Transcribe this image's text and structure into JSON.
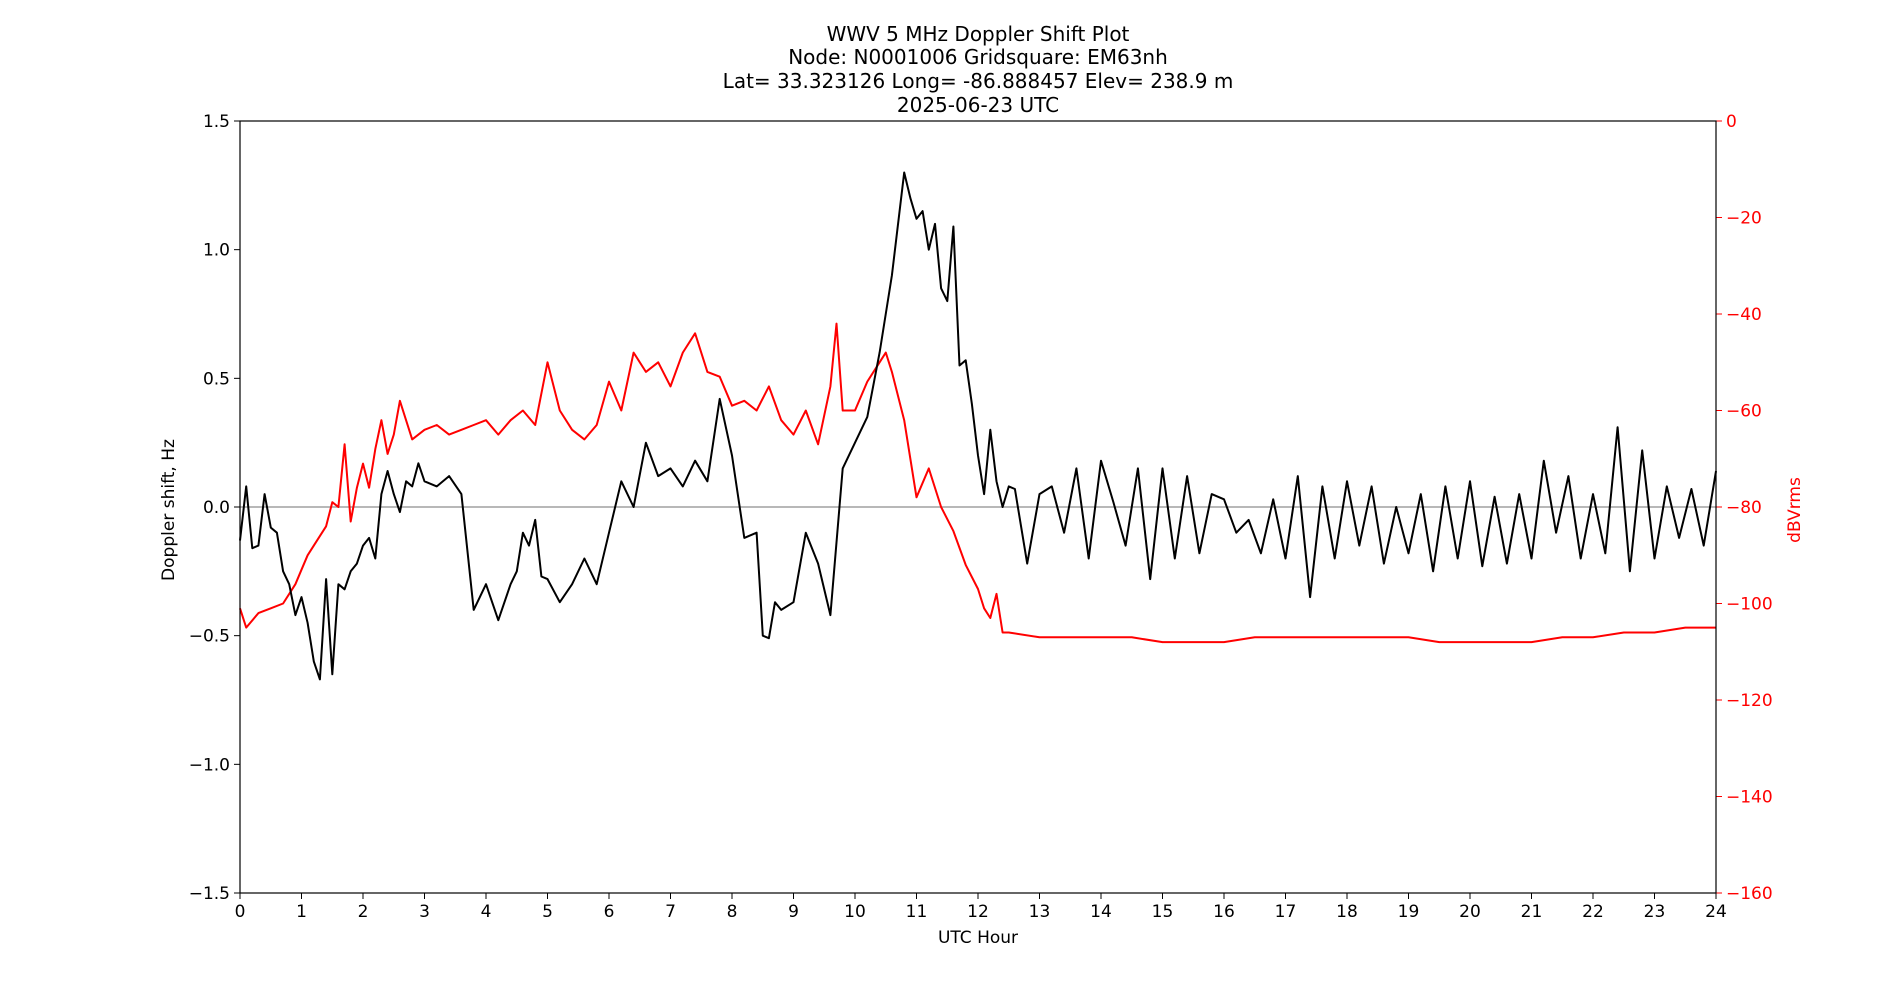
{
  "chart_data": {
    "type": "line",
    "title": {
      "line1": "WWV 5 MHz Doppler Shift Plot",
      "line2": "Node:  N0001006     Gridsquare:  EM63nh",
      "line3": "Lat= 33.323126    Long= -86.888457    Elev= 238.9 m",
      "line4": "2025-06-23  UTC"
    },
    "xlabel": "UTC Hour",
    "ylabel_left": "Doppler shift, Hz",
    "ylabel_right": "dBVrms",
    "xlim": [
      0,
      24
    ],
    "ylim_left": [
      -1.5,
      1.5
    ],
    "ylim_right": [
      -160,
      0
    ],
    "xticks": [
      "0",
      "1",
      "2",
      "3",
      "4",
      "5",
      "6",
      "7",
      "8",
      "9",
      "10",
      "11",
      "12",
      "13",
      "14",
      "15",
      "16",
      "17",
      "18",
      "19",
      "20",
      "21",
      "22",
      "23",
      "24"
    ],
    "yticks_left": [
      "1.5",
      "1.0",
      "0.5",
      "0.0",
      "−0.5",
      "−1.0",
      "−1.5"
    ],
    "yticks_right": [
      "0",
      "−20",
      "−40",
      "−60",
      "−80",
      "−100",
      "−120",
      "−140",
      "−160"
    ],
    "zero_line": 0,
    "grid": false,
    "colors": {
      "doppler": "#000000",
      "power": "#ff0000",
      "zero_line": "#a0a0a0"
    },
    "series": [
      {
        "axis": "left",
        "x": [
          0,
          0.1,
          0.2,
          0.3,
          0.4,
          0.5,
          0.6,
          0.7,
          0.8,
          0.9,
          1.0,
          1.1,
          1.2,
          1.3,
          1.4,
          1.5,
          1.6,
          1.7,
          1.8,
          1.9,
          2.0,
          2.1,
          2.2,
          2.3,
          2.4,
          2.5,
          2.6,
          2.7,
          2.8,
          2.9,
          3.0,
          3.2,
          3.4,
          3.6,
          3.8,
          4.0,
          4.2,
          4.4,
          4.5,
          4.6,
          4.7,
          4.8,
          4.9,
          5.0,
          5.2,
          5.4,
          5.6,
          5.8,
          6.0,
          6.2,
          6.4,
          6.6,
          6.8,
          7.0,
          7.2,
          7.4,
          7.6,
          7.8,
          8.0,
          8.2,
          8.4,
          8.5,
          8.6,
          8.7,
          8.8,
          9.0,
          9.2,
          9.4,
          9.6,
          9.8,
          10.0,
          10.2,
          10.4,
          10.6,
          10.8,
          10.9,
          11.0,
          11.1,
          11.2,
          11.3,
          11.4,
          11.5,
          11.6,
          11.7,
          11.8,
          11.9,
          12.0,
          12.1,
          12.2,
          12.3,
          12.4,
          12.5,
          12.6,
          12.8,
          13.0,
          13.2,
          13.4,
          13.6,
          13.8,
          14.0,
          14.2,
          14.4,
          14.6,
          14.8,
          15.0,
          15.2,
          15.4,
          15.6,
          15.8,
          16.0,
          16.2,
          16.4,
          16.6,
          16.8,
          17.0,
          17.2,
          17.4,
          17.6,
          17.8,
          18.0,
          18.2,
          18.4,
          18.6,
          18.8,
          19.0,
          19.2,
          19.4,
          19.6,
          19.8,
          20.0,
          20.2,
          20.4,
          20.6,
          20.8,
          21.0,
          21.2,
          21.4,
          21.6,
          21.8,
          22.0,
          22.2,
          22.4,
          22.6,
          22.8,
          23.0,
          23.2,
          23.4,
          23.6,
          23.8,
          24.0
        ],
        "values": [
          -0.13,
          0.08,
          -0.16,
          -0.15,
          0.05,
          -0.08,
          -0.1,
          -0.25,
          -0.3,
          -0.42,
          -0.35,
          -0.45,
          -0.6,
          -0.67,
          -0.28,
          -0.65,
          -0.3,
          -0.32,
          -0.25,
          -0.22,
          -0.15,
          -0.12,
          -0.2,
          0.05,
          0.14,
          0.05,
          -0.02,
          0.1,
          0.08,
          0.17,
          0.1,
          0.08,
          0.12,
          0.05,
          -0.4,
          -0.3,
          -0.44,
          -0.3,
          -0.25,
          -0.1,
          -0.15,
          -0.05,
          -0.27,
          -0.28,
          -0.37,
          -0.3,
          -0.2,
          -0.3,
          -0.1,
          0.1,
          0.0,
          0.25,
          0.12,
          0.15,
          0.08,
          0.18,
          0.1,
          0.42,
          0.2,
          -0.12,
          -0.1,
          -0.5,
          -0.51,
          -0.37,
          -0.4,
          -0.37,
          -0.1,
          -0.22,
          -0.42,
          0.15,
          0.25,
          0.35,
          0.6,
          0.9,
          1.3,
          1.2,
          1.12,
          1.15,
          1.0,
          1.1,
          0.85,
          0.8,
          1.09,
          0.55,
          0.57,
          0.4,
          0.2,
          0.05,
          0.3,
          0.1,
          0.0,
          0.08,
          0.07,
          -0.22,
          0.05,
          0.08,
          -0.1,
          0.15,
          -0.2,
          0.18,
          0.02,
          -0.15,
          0.15,
          -0.28,
          0.15,
          -0.2,
          0.12,
          -0.18,
          0.05,
          0.03,
          -0.1,
          -0.05,
          -0.18,
          0.03,
          -0.2,
          0.12,
          -0.35,
          0.08,
          -0.2,
          0.1,
          -0.15,
          0.08,
          -0.22,
          0.0,
          -0.18,
          0.05,
          -0.25,
          0.08,
          -0.2,
          0.1,
          -0.23,
          0.04,
          -0.22,
          0.05,
          -0.2,
          0.18,
          -0.1,
          0.12,
          -0.2,
          0.05,
          -0.18,
          0.31,
          -0.25,
          0.22,
          -0.2,
          0.08,
          -0.12,
          0.07,
          -0.15,
          0.14
        ]
      },
      {
        "axis": "right",
        "x": [
          0,
          0.1,
          0.3,
          0.5,
          0.7,
          0.9,
          1.0,
          1.1,
          1.2,
          1.4,
          1.5,
          1.6,
          1.7,
          1.8,
          1.9,
          2.0,
          2.1,
          2.2,
          2.3,
          2.4,
          2.5,
          2.6,
          2.8,
          3.0,
          3.2,
          3.4,
          3.6,
          3.8,
          4.0,
          4.2,
          4.4,
          4.6,
          4.8,
          5.0,
          5.2,
          5.4,
          5.6,
          5.8,
          6.0,
          6.2,
          6.4,
          6.6,
          6.8,
          7.0,
          7.2,
          7.4,
          7.6,
          7.8,
          8.0,
          8.2,
          8.4,
          8.6,
          8.8,
          9.0,
          9.2,
          9.4,
          9.6,
          9.7,
          9.8,
          10.0,
          10.2,
          10.4,
          10.5,
          10.6,
          10.8,
          11.0,
          11.2,
          11.4,
          11.6,
          11.8,
          12.0,
          12.1,
          12.2,
          12.3,
          12.4,
          12.5,
          13.0,
          13.5,
          14.0,
          14.5,
          15.0,
          15.5,
          16.0,
          16.5,
          17.0,
          17.5,
          18.0,
          18.5,
          19.0,
          19.5,
          20.0,
          20.5,
          21.0,
          21.5,
          22.0,
          22.5,
          23.0,
          23.5,
          24.0
        ],
        "values": [
          -101,
          -105,
          -102,
          -101,
          -100,
          -96,
          -93,
          -90,
          -88,
          -84,
          -79,
          -80,
          -67,
          -83,
          -76,
          -71,
          -76,
          -68,
          -62,
          -69,
          -65,
          -58,
          -66,
          -64,
          -63,
          -65,
          -64,
          -63,
          -62,
          -65,
          -62,
          -60,
          -63,
          -50,
          -60,
          -64,
          -66,
          -63,
          -54,
          -60,
          -48,
          -52,
          -50,
          -55,
          -48,
          -44,
          -52,
          -53,
          -59,
          -58,
          -60,
          -55,
          -62,
          -65,
          -60,
          -67,
          -55,
          -42,
          -60,
          -60,
          -54,
          -50,
          -48,
          -52,
          -62,
          -78,
          -72,
          -80,
          -85,
          -92,
          -97,
          -101,
          -103,
          -98,
          -106,
          -106,
          -107,
          -107,
          -107,
          -107,
          -108,
          -108,
          -108,
          -107,
          -107,
          -107,
          -107,
          -107,
          -107,
          -108,
          -108,
          -108,
          -108,
          -107,
          -107,
          -106,
          -106,
          -105,
          -105
        ]
      }
    ]
  }
}
